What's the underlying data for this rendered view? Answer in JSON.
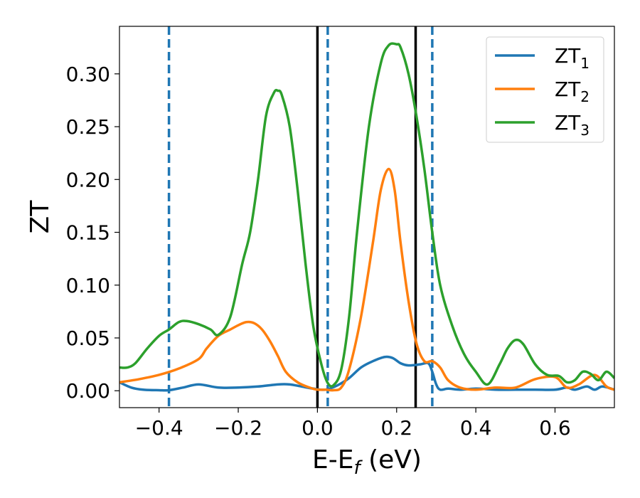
{
  "chart_data": {
    "type": "line",
    "xlabel_main": "E-E",
    "xlabel_sub": "f",
    "xlabel_unit": " (eV)",
    "ylabel": "ZT",
    "xlim": [
      -0.5,
      0.75
    ],
    "ylim": [
      -0.016,
      0.345
    ],
    "xticks": [
      -0.4,
      -0.2,
      0.0,
      0.2,
      0.4,
      0.6
    ],
    "xtick_labels": [
      "−0.4",
      "−0.2",
      "0.0",
      "0.2",
      "0.4",
      "0.6"
    ],
    "yticks": [
      0.0,
      0.05,
      0.1,
      0.15,
      0.2,
      0.25,
      0.3
    ],
    "ytick_labels": [
      "0.00",
      "0.05",
      "0.10",
      "0.15",
      "0.20",
      "0.25",
      "0.30"
    ],
    "grid": false,
    "legend_position": "top-right",
    "series": [
      {
        "name": "ZT",
        "sub": "1",
        "color": "#1f77b4",
        "x": [
          -0.5,
          -0.47,
          -0.44,
          -0.4,
          -0.375,
          -0.34,
          -0.3,
          -0.25,
          -0.2,
          -0.15,
          -0.1,
          -0.07,
          -0.04,
          -0.01,
          0.02,
          0.05,
          0.08,
          0.11,
          0.14,
          0.17,
          0.19,
          0.21,
          0.23,
          0.26,
          0.28,
          0.29,
          0.3,
          0.31,
          0.33,
          0.36,
          0.4,
          0.45,
          0.5,
          0.55,
          0.6,
          0.63,
          0.65,
          0.68,
          0.7,
          0.72,
          0.75
        ],
        "y": [
          0.008,
          0.003,
          0.001,
          0.0005,
          0.0005,
          0.003,
          0.006,
          0.003,
          0.003,
          0.004,
          0.006,
          0.006,
          0.004,
          0.002,
          0.001,
          0.005,
          0.012,
          0.022,
          0.028,
          0.032,
          0.031,
          0.026,
          0.024,
          0.025,
          0.026,
          0.018,
          0.006,
          0.001,
          0.002,
          0.001,
          0.002,
          0.001,
          0.001,
          0.001,
          0.001,
          0.003,
          0.001,
          0.004,
          0.001,
          0.004,
          0.001
        ]
      },
      {
        "name": "ZT",
        "sub": "2",
        "color": "#ff7f0e",
        "x": [
          -0.5,
          -0.45,
          -0.4,
          -0.35,
          -0.3,
          -0.28,
          -0.25,
          -0.22,
          -0.2,
          -0.18,
          -0.16,
          -0.14,
          -0.12,
          -0.1,
          -0.08,
          -0.05,
          -0.02,
          0.0,
          0.02,
          0.04,
          0.06,
          0.08,
          0.11,
          0.14,
          0.16,
          0.18,
          0.195,
          0.21,
          0.23,
          0.25,
          0.27,
          0.29,
          0.31,
          0.33,
          0.36,
          0.4,
          0.45,
          0.5,
          0.55,
          0.6,
          0.63,
          0.66,
          0.7,
          0.73,
          0.75
        ],
        "y": [
          0.008,
          0.011,
          0.015,
          0.021,
          0.03,
          0.04,
          0.052,
          0.058,
          0.062,
          0.065,
          0.064,
          0.058,
          0.047,
          0.033,
          0.018,
          0.008,
          0.003,
          0.001,
          0.001,
          0.0005,
          0.003,
          0.02,
          0.07,
          0.14,
          0.19,
          0.21,
          0.19,
          0.14,
          0.085,
          0.045,
          0.028,
          0.028,
          0.022,
          0.01,
          0.003,
          0.001,
          0.003,
          0.003,
          0.011,
          0.013,
          0.003,
          0.006,
          0.015,
          0.004,
          0.001
        ]
      },
      {
        "name": "ZT",
        "sub": "3",
        "color": "#2ca02c",
        "x": [
          -0.5,
          -0.48,
          -0.46,
          -0.43,
          -0.4,
          -0.375,
          -0.35,
          -0.33,
          -0.3,
          -0.27,
          -0.25,
          -0.22,
          -0.19,
          -0.17,
          -0.15,
          -0.13,
          -0.11,
          -0.1,
          -0.09,
          -0.07,
          -0.05,
          -0.03,
          -0.01,
          0.01,
          0.025,
          0.04,
          0.06,
          0.08,
          0.1,
          0.13,
          0.16,
          0.18,
          0.2,
          0.21,
          0.23,
          0.25,
          0.27,
          0.29,
          0.31,
          0.34,
          0.37,
          0.4,
          0.43,
          0.46,
          0.48,
          0.5,
          0.52,
          0.55,
          0.58,
          0.61,
          0.63,
          0.65,
          0.67,
          0.69,
          0.71,
          0.73,
          0.75
        ],
        "y": [
          0.022,
          0.022,
          0.026,
          0.04,
          0.052,
          0.058,
          0.065,
          0.066,
          0.063,
          0.058,
          0.053,
          0.07,
          0.12,
          0.15,
          0.2,
          0.26,
          0.282,
          0.284,
          0.28,
          0.25,
          0.19,
          0.12,
          0.06,
          0.025,
          0.008,
          0.005,
          0.02,
          0.07,
          0.15,
          0.25,
          0.31,
          0.327,
          0.328,
          0.325,
          0.3,
          0.26,
          0.21,
          0.15,
          0.1,
          0.062,
          0.035,
          0.018,
          0.006,
          0.025,
          0.04,
          0.048,
          0.044,
          0.025,
          0.015,
          0.014,
          0.008,
          0.01,
          0.018,
          0.016,
          0.01,
          0.018,
          0.012
        ]
      }
    ],
    "vlines": [
      {
        "x": -0.375,
        "style": "dashed",
        "color": "#1f77b4"
      },
      {
        "x": 0.026,
        "style": "dashed",
        "color": "#1f77b4"
      },
      {
        "x": 0.29,
        "style": "dashed",
        "color": "#1f77b4"
      },
      {
        "x": 0.0,
        "style": "solid",
        "color": "#000000"
      },
      {
        "x": 0.248,
        "style": "solid",
        "color": "#000000"
      }
    ]
  }
}
